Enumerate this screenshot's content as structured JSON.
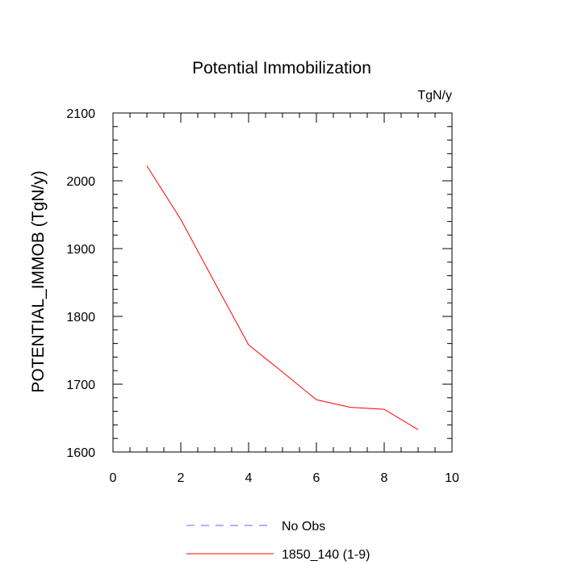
{
  "chart_data": {
    "type": "line",
    "title": "Potential Immobilization",
    "units": "TgN/y",
    "xlabel": "",
    "ylabel": "POTENTIAL_IMMOB  (TgN/y)",
    "xlim": [
      0,
      10
    ],
    "ylim": [
      1600,
      2100
    ],
    "xticks": [
      0,
      2,
      4,
      6,
      8,
      10
    ],
    "yticks": [
      1600,
      1700,
      1800,
      1900,
      2000,
      2100
    ],
    "grid": false,
    "legend_position": "bottom",
    "series": [
      {
        "name": "No Obs",
        "color": "#6666ff",
        "dash": "dashed",
        "x": [],
        "y": []
      },
      {
        "name": "1850_140 (1-9)",
        "color": "#ff0000",
        "dash": "solid",
        "x": [
          1,
          2,
          3,
          4,
          5,
          6,
          7,
          8,
          9
        ],
        "y": [
          2022,
          1943,
          1850,
          1758,
          1718,
          1677,
          1666,
          1663,
          1633
        ]
      }
    ]
  }
}
